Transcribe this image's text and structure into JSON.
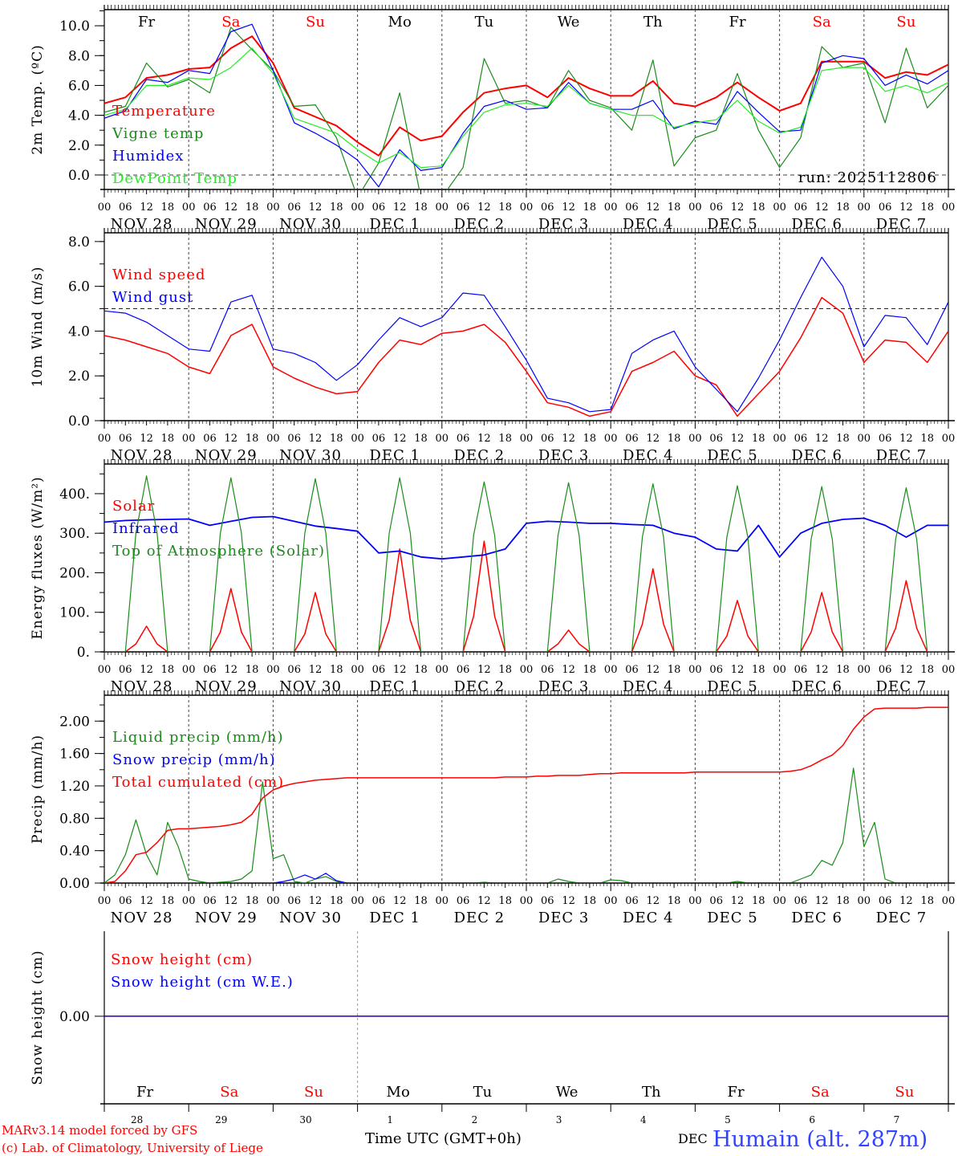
{
  "colors": {
    "red": "#ff0000",
    "dkgreen": "#1a8c1a",
    "blue": "#0000ff",
    "ltgreen": "#22ee22",
    "weekday": "#000000",
    "weekend": "#ff0000",
    "station": "#3344ff"
  },
  "weekdays": [
    "Fr",
    "Sa",
    "Su",
    "Mo",
    "Tu",
    "We",
    "Th",
    "Fr",
    "Sa",
    "Su"
  ],
  "weekend_flags": [
    false,
    true,
    true,
    false,
    false,
    false,
    false,
    false,
    true,
    true
  ],
  "hour_labels": [
    "00",
    "06",
    "12",
    "18"
  ],
  "date_labels": [
    "NOV 28",
    "NOV 29",
    "NOV 30",
    "DEC  1",
    "DEC  2",
    "DEC  3",
    "DEC  4",
    "DEC  5",
    "DEC  6",
    "DEC  7"
  ],
  "end_hour_label": "00",
  "day_numbers": [
    "28",
    "29",
    "30",
    "1",
    "2",
    "3",
    "4",
    "5",
    "6",
    "7"
  ],
  "footer": {
    "model": "MARv3.14 model forced by GFS",
    "credit": "(c) Lab. of Climatology, University of Liege",
    "xlabel": "Time UTC (GMT+0h)",
    "month": "DEC",
    "station": "Humain (alt. 287m)"
  },
  "chart_data": [
    {
      "type": "line",
      "id": "temp",
      "ylabel": "2m Temp. (ºC)",
      "ylim": [
        -0.97,
        11.08
      ],
      "yticks": [
        "0.0",
        "2.0",
        "4.0",
        "6.0",
        "8.0",
        "10.0"
      ],
      "ytick_values": [
        0,
        2,
        4,
        6,
        8,
        10
      ],
      "minor_step": 1,
      "ref_line": 0,
      "annotation": "run: 2025112806",
      "x_step_hours": 6,
      "series": [
        {
          "name": "Temperature",
          "color": "#ff0000",
          "width": 2,
          "values": [
            4.8,
            5.2,
            6.5,
            6.7,
            7.1,
            7.2,
            8.5,
            9.3,
            7.5,
            4.5,
            3.9,
            3.3,
            2.2,
            1.3,
            3.2,
            2.3,
            2.6,
            4.2,
            5.5,
            5.8,
            6.0,
            5.2,
            6.5,
            5.8,
            5.3,
            5.3,
            6.3,
            4.8,
            4.6,
            5.2,
            6.2,
            5.2,
            4.3,
            4.8,
            7.6,
            7.6,
            7.6,
            6.5,
            6.9,
            6.7,
            7.4
          ]
        },
        {
          "name": "Vigne temp",
          "color": "#1a8c1a",
          "width": 1.2,
          "values": [
            4.2,
            4.6,
            7.5,
            5.9,
            6.4,
            5.5,
            9.9,
            8.4,
            7.0,
            4.6,
            4.7,
            2.5,
            -1.5,
            0.8,
            5.5,
            -1.5,
            -1.5,
            0.5,
            7.8,
            4.8,
            5.0,
            4.5,
            7.0,
            5.0,
            4.5,
            3.0,
            7.7,
            0.6,
            2.5,
            3.0,
            6.8,
            3.0,
            0.5,
            2.5,
            8.6,
            7.2,
            7.5,
            3.5,
            8.5,
            4.5,
            6.0
          ]
        },
        {
          "name": "Humidex",
          "color": "#0000ff",
          "width": 1.2,
          "values": [
            3.8,
            4.3,
            6.4,
            6.2,
            7.0,
            6.8,
            9.6,
            10.1,
            7.0,
            3.5,
            2.8,
            2.0,
            1.0,
            -0.8,
            1.7,
            0.3,
            0.5,
            2.8,
            4.6,
            5.0,
            4.4,
            4.5,
            6.2,
            4.8,
            4.4,
            4.4,
            5.0,
            3.1,
            3.6,
            3.4,
            5.6,
            4.2,
            2.9,
            3.0,
            7.5,
            8.0,
            7.8,
            6.0,
            6.7,
            6.1,
            7.0
          ]
        },
        {
          "name": "DewPoint Temp",
          "color": "#22ee22",
          "width": 1.2,
          "values": [
            4.0,
            4.4,
            6.0,
            6.0,
            6.5,
            6.4,
            7.2,
            8.5,
            6.8,
            3.8,
            3.3,
            2.8,
            1.7,
            0.8,
            1.5,
            0.5,
            0.6,
            2.6,
            4.2,
            4.7,
            4.8,
            4.6,
            6.0,
            4.8,
            4.4,
            4.0,
            4.0,
            3.2,
            3.5,
            3.7,
            5.0,
            3.6,
            2.8,
            3.2,
            7.0,
            7.2,
            7.2,
            5.6,
            6.0,
            5.5,
            6.2
          ]
        }
      ]
    },
    {
      "type": "line",
      "id": "wind",
      "ylabel": "10m Wind (m/s)",
      "ylim": [
        0,
        8.39
      ],
      "yticks": [
        "0.0",
        "2.0",
        "4.0",
        "6.0",
        "8.0"
      ],
      "ytick_values": [
        0,
        2,
        4,
        6,
        8
      ],
      "minor_step": 1,
      "ref_line": 5,
      "x_step_hours": 6,
      "series": [
        {
          "name": "Wind speed",
          "color": "#ff0000",
          "width": 1.5,
          "values": [
            3.8,
            3.6,
            3.3,
            3.0,
            2.4,
            2.1,
            3.8,
            4.3,
            2.4,
            1.9,
            1.5,
            1.2,
            1.3,
            2.6,
            3.6,
            3.4,
            3.9,
            4.0,
            4.3,
            3.5,
            2.2,
            0.8,
            0.6,
            0.2,
            0.4,
            2.2,
            2.6,
            3.1,
            2.0,
            1.6,
            0.2,
            1.2,
            2.2,
            3.7,
            5.5,
            4.8,
            2.6,
            3.6,
            3.5,
            2.6,
            4.0
          ]
        },
        {
          "name": "Wind gust",
          "color": "#0000ff",
          "width": 1.2,
          "values": [
            4.9,
            4.8,
            4.4,
            3.8,
            3.2,
            3.1,
            5.3,
            5.6,
            3.2,
            3.0,
            2.6,
            1.8,
            2.5,
            3.6,
            4.6,
            4.2,
            4.6,
            5.7,
            5.6,
            4.2,
            2.7,
            1.0,
            0.8,
            0.4,
            0.5,
            3.0,
            3.6,
            4.0,
            2.4,
            1.4,
            0.4,
            1.9,
            3.6,
            5.5,
            7.3,
            6.0,
            3.3,
            4.7,
            4.6,
            3.4,
            5.3
          ]
        }
      ]
    },
    {
      "type": "line",
      "id": "energy",
      "ylabel": "Energy fluxes (W/m²)",
      "ylim": [
        0,
        475
      ],
      "yticks": [
        "0.",
        "100.",
        "200.",
        "300.",
        "400."
      ],
      "ytick_values": [
        0,
        100,
        200,
        300,
        400
      ],
      "minor_step": 50,
      "x_step_hours": 3,
      "series": [
        {
          "name": "Solar",
          "color": "#ff0000",
          "width": 1.5,
          "values": [
            0,
            0,
            0,
            20,
            65,
            20,
            0,
            0,
            0,
            0,
            0,
            50,
            160,
            50,
            0,
            0,
            0,
            0,
            0,
            45,
            150,
            45,
            0,
            0,
            0,
            0,
            0,
            80,
            260,
            80,
            0,
            0,
            0,
            0,
            0,
            90,
            280,
            90,
            0,
            0,
            0,
            0,
            0,
            20,
            55,
            20,
            0,
            0,
            0,
            0,
            0,
            70,
            210,
            70,
            0,
            0,
            0,
            0,
            0,
            40,
            130,
            40,
            0,
            0,
            0,
            0,
            0,
            50,
            150,
            50,
            0,
            0,
            0,
            0,
            0,
            60,
            180,
            60,
            0,
            0,
            0
          ]
        },
        {
          "name": "Infrared",
          "color": "#0000ff",
          "width": 1.8,
          "x_step_hours": 6,
          "values": [
            328,
            332,
            334,
            335,
            336,
            320,
            330,
            340,
            342,
            330,
            318,
            312,
            305,
            250,
            255,
            240,
            235,
            240,
            245,
            260,
            325,
            330,
            328,
            325,
            325,
            322,
            320,
            300,
            290,
            260,
            255,
            320,
            240,
            300,
            325,
            335,
            338,
            320,
            290,
            320,
            320
          ]
        },
        {
          "name": "Top of Atmosphere (Solar)",
          "color": "#1a8c1a",
          "width": 1.2,
          "values": [
            0,
            0,
            0,
            300,
            445,
            300,
            0,
            0,
            0,
            0,
            0,
            300,
            440,
            300,
            0,
            0,
            0,
            0,
            0,
            300,
            438,
            300,
            0,
            0,
            0,
            0,
            0,
            300,
            440,
            300,
            0,
            0,
            0,
            0,
            0,
            295,
            430,
            295,
            0,
            0,
            0,
            0,
            0,
            295,
            428,
            295,
            0,
            0,
            0,
            0,
            0,
            290,
            425,
            290,
            0,
            0,
            0,
            0,
            0,
            290,
            420,
            290,
            0,
            0,
            0,
            0,
            0,
            285,
            418,
            285,
            0,
            0,
            0,
            0,
            0,
            285,
            415,
            285,
            0,
            0,
            0
          ]
        }
      ]
    },
    {
      "type": "line",
      "id": "precip",
      "ylabel": "Precip (mm/h)",
      "ylim": [
        0,
        2.32
      ],
      "yticks": [
        "0.00",
        "0.40",
        "0.80",
        "1.20",
        "1.60",
        "2.00"
      ],
      "ytick_values": [
        0,
        0.4,
        0.8,
        1.2,
        1.6,
        2.0
      ],
      "minor_step": 0.2,
      "x_step_hours": 3,
      "series": [
        {
          "name": "Liquid precip (mm/h)",
          "color": "#1a8c1a",
          "width": 1.2,
          "values": [
            0,
            0.1,
            0.35,
            0.78,
            0.35,
            0.1,
            0.75,
            0.45,
            0.05,
            0.02,
            0,
            0.01,
            0.02,
            0.05,
            0.15,
            1.25,
            0.3,
            0.35,
            0.02,
            0,
            0.05,
            0.08,
            0.02,
            0,
            0,
            0,
            0,
            0,
            0,
            0,
            0,
            0,
            0,
            0,
            0,
            0,
            0.01,
            0,
            0,
            0,
            0,
            0,
            0,
            0.05,
            0.02,
            0,
            0,
            0,
            0.04,
            0.03,
            0,
            0,
            0,
            0,
            0,
            0,
            0,
            0,
            0,
            0,
            0.02,
            0,
            0,
            0,
            0,
            0,
            0.05,
            0.1,
            0.28,
            0.22,
            0.5,
            1.42,
            0.45,
            0.75,
            0.05,
            0,
            0,
            0,
            0,
            0,
            0
          ]
        },
        {
          "name": "Snow precip (mm/h)",
          "color": "#0000ff",
          "width": 1.2,
          "values": [
            0,
            0,
            0,
            0,
            0,
            0,
            0,
            0,
            0,
            0,
            0,
            0,
            0,
            0,
            0,
            0,
            0,
            0.02,
            0.05,
            0.1,
            0.05,
            0.12,
            0.03,
            0,
            0,
            0,
            0,
            0,
            0,
            0,
            0,
            0,
            0,
            0,
            0,
            0,
            0,
            0,
            0,
            0,
            0,
            0,
            0,
            0,
            0,
            0,
            0,
            0,
            0,
            0,
            0,
            0,
            0,
            0,
            0,
            0,
            0,
            0,
            0,
            0,
            0,
            0,
            0,
            0,
            0,
            0,
            0,
            0,
            0,
            0,
            0,
            0,
            0,
            0,
            0,
            0,
            0,
            0,
            0,
            0,
            0
          ]
        },
        {
          "name": "Total cumulated (cm)",
          "color": "#ff0000",
          "width": 1.5,
          "values": [
            0,
            0.02,
            0.15,
            0.35,
            0.38,
            0.5,
            0.65,
            0.67,
            0.67,
            0.68,
            0.69,
            0.7,
            0.72,
            0.75,
            0.85,
            1.05,
            1.15,
            1.2,
            1.23,
            1.25,
            1.27,
            1.28,
            1.29,
            1.3,
            1.3,
            1.3,
            1.3,
            1.3,
            1.3,
            1.3,
            1.3,
            1.3,
            1.3,
            1.3,
            1.3,
            1.3,
            1.3,
            1.3,
            1.31,
            1.31,
            1.31,
            1.32,
            1.32,
            1.33,
            1.33,
            1.33,
            1.34,
            1.35,
            1.35,
            1.36,
            1.36,
            1.36,
            1.36,
            1.36,
            1.36,
            1.36,
            1.37,
            1.37,
            1.37,
            1.37,
            1.37,
            1.37,
            1.37,
            1.37,
            1.37,
            1.38,
            1.4,
            1.45,
            1.52,
            1.58,
            1.7,
            1.9,
            2.05,
            2.15,
            2.16,
            2.16,
            2.16,
            2.16,
            2.17,
            2.17,
            2.17
          ]
        }
      ]
    },
    {
      "type": "line",
      "id": "snow",
      "ylabel": "Snow height (cm)",
      "ylim": [
        -1.03,
        1
      ],
      "yticks": [
        "0.00"
      ],
      "ytick_values": [
        0
      ],
      "x_step_hours": 240,
      "series": [
        {
          "name": "Snow height (cm)",
          "color": "#ff0000",
          "width": 1.5,
          "values": [
            0,
            0
          ]
        },
        {
          "name": "Snow height (cm W.E.)",
          "color": "#0000ff",
          "width": 1.2,
          "values": [
            0,
            0
          ]
        }
      ]
    }
  ]
}
